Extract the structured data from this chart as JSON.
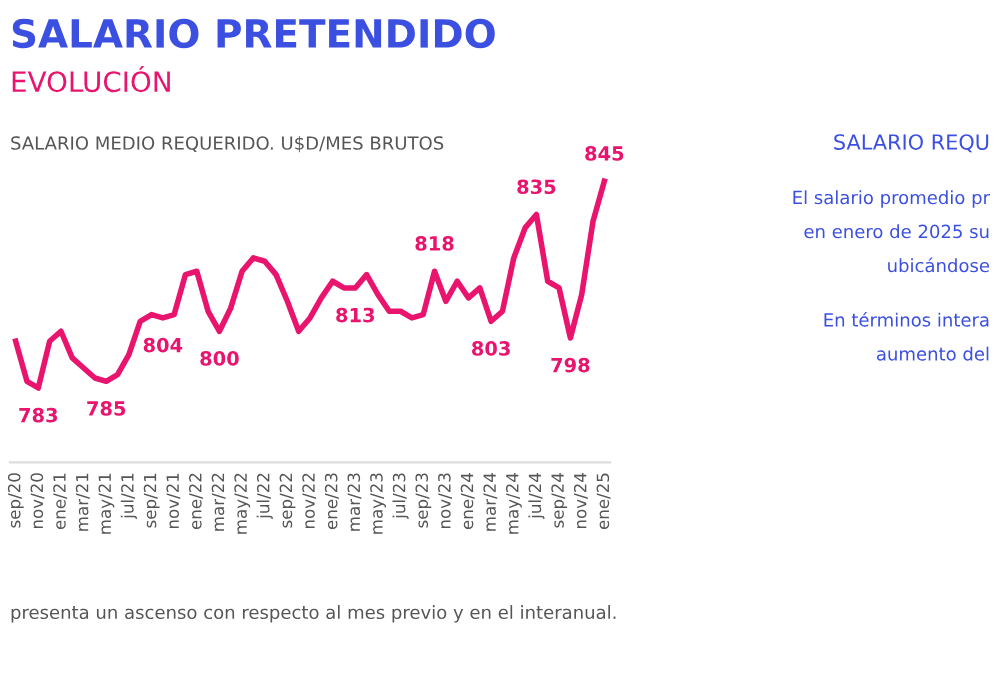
{
  "chart_data": {
    "type": "line",
    "title": "SALARIO PRETENDIDO",
    "subtitle": "EVOLUCIÓN",
    "ylabel": "SALARIO MEDIO REQUERIDO. U$D/MES BRUTOS",
    "categories": [
      "sep/20",
      null,
      "nov/20",
      null,
      "ene/21",
      null,
      "mar/21",
      null,
      "may/21",
      null,
      "jul/21",
      null,
      "sep/21",
      null,
      "nov/21",
      null,
      "ene/22",
      null,
      "mar/22",
      null,
      "may/22",
      null,
      "jul/22",
      null,
      "sep/22",
      null,
      "nov/22",
      null,
      "ene/23",
      null,
      "mar/23",
      null,
      "may/23",
      null,
      "jul/23",
      null,
      "sep/23",
      null,
      "nov/23",
      null,
      "ene/24",
      null,
      "mar/24",
      null,
      "may/24",
      null,
      "jul/24",
      null,
      "sep/24",
      null,
      "nov/24",
      null,
      "ene/25"
    ],
    "series": [
      {
        "color": "#e8146e",
        "values": [
          797,
          785,
          783,
          797,
          800,
          792,
          789,
          786,
          785,
          787,
          793,
          803,
          805,
          804,
          805,
          817,
          818,
          806,
          800,
          807,
          818,
          822,
          821,
          817,
          809,
          800,
          804,
          810,
          815,
          813,
          813,
          817,
          811,
          806,
          806,
          804,
          805,
          818,
          809,
          815,
          810,
          813,
          803,
          806,
          822,
          831,
          835,
          815,
          813,
          798,
          811,
          833,
          845
        ],
        "value_labels": [
          null,
          null,
          "783",
          null,
          null,
          null,
          null,
          null,
          "785",
          null,
          null,
          null,
          null,
          "804",
          null,
          null,
          null,
          null,
          "800",
          null,
          null,
          null,
          null,
          null,
          null,
          null,
          null,
          null,
          null,
          null,
          "813",
          null,
          null,
          null,
          null,
          null,
          null,
          "818",
          null,
          null,
          null,
          null,
          "803",
          null,
          null,
          null,
          "835",
          null,
          null,
          "798",
          null,
          null,
          "845"
        ]
      }
    ],
    "annotations": [
      "presenta un ascenso con respecto al mes previo y en el interanual.",
      "SALARIO REQU",
      "El salario promedio pr",
      "en enero de 2025 su",
      "ubicándose",
      "En términos intera",
      "aumento del"
    ],
    "legend": false,
    "grid": false
  }
}
